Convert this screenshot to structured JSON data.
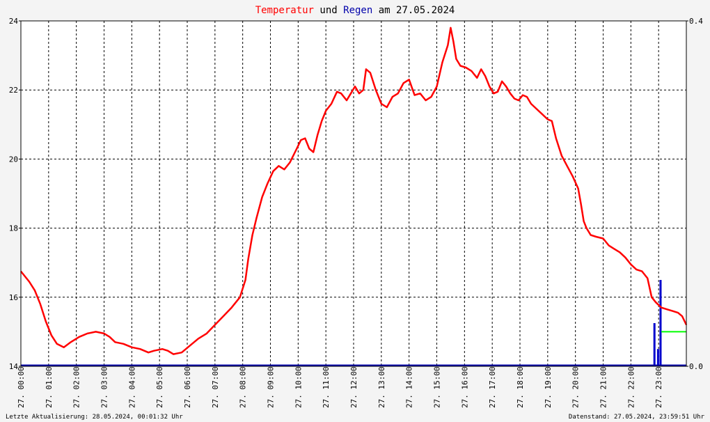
{
  "chart_data": {
    "type": "line",
    "title": {
      "part1": "Temperatur",
      "part2": " und ",
      "part3": "Regen",
      "part4": " am 27.05.2024"
    },
    "x_tick_labels": [
      "27. 00:00",
      "27. 01:00",
      "27. 02:00",
      "27. 03:00",
      "27. 04:00",
      "27. 05:00",
      "27. 06:00",
      "27. 07:00",
      "27. 08:00",
      "27. 09:00",
      "27. 10:00",
      "27. 11:00",
      "27. 12:00",
      "27. 13:00",
      "27. 14:00",
      "27. 15:00",
      "27. 16:00",
      "27. 17:00",
      "27. 18:00",
      "27. 19:00",
      "27. 20:00",
      "27. 21:00",
      "27. 22:00",
      "27. 23:00"
    ],
    "y_left_ticks": [
      "14",
      "16",
      "18",
      "20",
      "22",
      "24"
    ],
    "y_left_range": [
      14,
      24
    ],
    "y_right_ticks": [
      "0.0",
      "0.4"
    ],
    "y_right_range": [
      0,
      0.4
    ],
    "x_range_hours": [
      0,
      24
    ],
    "grid": true,
    "series": [
      {
        "color": "#ff0000",
        "axis": "left",
        "points": [
          [
            0.0,
            16.75
          ],
          [
            0.3,
            16.45
          ],
          [
            0.5,
            16.2
          ],
          [
            0.7,
            15.8
          ],
          [
            0.9,
            15.3
          ],
          [
            1.1,
            14.9
          ],
          [
            1.3,
            14.65
          ],
          [
            1.55,
            14.55
          ],
          [
            1.8,
            14.7
          ],
          [
            2.1,
            14.85
          ],
          [
            2.4,
            14.95
          ],
          [
            2.7,
            15.0
          ],
          [
            3.0,
            14.95
          ],
          [
            3.2,
            14.85
          ],
          [
            3.4,
            14.7
          ],
          [
            3.7,
            14.65
          ],
          [
            4.0,
            14.55
          ],
          [
            4.3,
            14.5
          ],
          [
            4.6,
            14.4
          ],
          [
            4.8,
            14.45
          ],
          [
            5.1,
            14.5
          ],
          [
            5.3,
            14.45
          ],
          [
            5.5,
            14.35
          ],
          [
            5.8,
            14.4
          ],
          [
            6.1,
            14.6
          ],
          [
            6.4,
            14.8
          ],
          [
            6.7,
            14.95
          ],
          [
            7.0,
            15.2
          ],
          [
            7.3,
            15.45
          ],
          [
            7.6,
            15.7
          ],
          [
            7.9,
            16.0
          ],
          [
            8.1,
            16.5
          ],
          [
            8.2,
            17.1
          ],
          [
            8.35,
            17.8
          ],
          [
            8.5,
            18.3
          ],
          [
            8.7,
            18.9
          ],
          [
            8.9,
            19.3
          ],
          [
            9.1,
            19.65
          ],
          [
            9.3,
            19.8
          ],
          [
            9.5,
            19.7
          ],
          [
            9.7,
            19.9
          ],
          [
            9.95,
            20.3
          ],
          [
            10.1,
            20.55
          ],
          [
            10.25,
            20.6
          ],
          [
            10.4,
            20.3
          ],
          [
            10.55,
            20.2
          ],
          [
            10.7,
            20.7
          ],
          [
            10.85,
            21.1
          ],
          [
            11.0,
            21.4
          ],
          [
            11.2,
            21.6
          ],
          [
            11.4,
            21.95
          ],
          [
            11.55,
            21.9
          ],
          [
            11.75,
            21.7
          ],
          [
            11.9,
            21.9
          ],
          [
            12.05,
            22.1
          ],
          [
            12.2,
            21.9
          ],
          [
            12.35,
            22.0
          ],
          [
            12.45,
            22.6
          ],
          [
            12.6,
            22.5
          ],
          [
            12.8,
            22.0
          ],
          [
            13.0,
            21.6
          ],
          [
            13.2,
            21.5
          ],
          [
            13.4,
            21.8
          ],
          [
            13.6,
            21.9
          ],
          [
            13.8,
            22.2
          ],
          [
            14.0,
            22.3
          ],
          [
            14.2,
            21.85
          ],
          [
            14.4,
            21.9
          ],
          [
            14.6,
            21.7
          ],
          [
            14.8,
            21.8
          ],
          [
            15.0,
            22.1
          ],
          [
            15.2,
            22.8
          ],
          [
            15.4,
            23.3
          ],
          [
            15.5,
            23.8
          ],
          [
            15.6,
            23.4
          ],
          [
            15.7,
            22.9
          ],
          [
            15.85,
            22.7
          ],
          [
            16.05,
            22.65
          ],
          [
            16.25,
            22.55
          ],
          [
            16.45,
            22.35
          ],
          [
            16.6,
            22.6
          ],
          [
            16.75,
            22.4
          ],
          [
            16.9,
            22.1
          ],
          [
            17.05,
            21.9
          ],
          [
            17.2,
            21.95
          ],
          [
            17.35,
            22.25
          ],
          [
            17.5,
            22.1
          ],
          [
            17.65,
            21.9
          ],
          [
            17.8,
            21.75
          ],
          [
            17.95,
            21.7
          ],
          [
            18.1,
            21.85
          ],
          [
            18.25,
            21.8
          ],
          [
            18.4,
            21.6
          ],
          [
            18.6,
            21.45
          ],
          [
            18.8,
            21.3
          ],
          [
            19.0,
            21.15
          ],
          [
            19.15,
            21.1
          ],
          [
            19.3,
            20.6
          ],
          [
            19.5,
            20.1
          ],
          [
            19.7,
            19.8
          ],
          [
            19.9,
            19.5
          ],
          [
            20.1,
            19.15
          ],
          [
            20.2,
            18.7
          ],
          [
            20.3,
            18.2
          ],
          [
            20.4,
            18.0
          ],
          [
            20.55,
            17.8
          ],
          [
            20.75,
            17.75
          ],
          [
            21.0,
            17.7
          ],
          [
            21.2,
            17.5
          ],
          [
            21.4,
            17.4
          ],
          [
            21.6,
            17.3
          ],
          [
            21.8,
            17.15
          ],
          [
            22.0,
            16.95
          ],
          [
            22.2,
            16.8
          ],
          [
            22.4,
            16.75
          ],
          [
            22.6,
            16.55
          ],
          [
            22.75,
            16.0
          ],
          [
            22.9,
            15.85
          ],
          [
            23.1,
            15.7
          ],
          [
            23.3,
            15.65
          ],
          [
            23.5,
            15.6
          ],
          [
            23.7,
            15.55
          ],
          [
            23.85,
            15.45
          ],
          [
            24.0,
            15.2
          ]
        ]
      },
      {
        "color": "#00ff00",
        "axis": "left",
        "points": [
          [
            23.1,
            15.0
          ],
          [
            24.0,
            15.0
          ]
        ]
      }
    ],
    "rain_bars": {
      "color": "#0000cc",
      "axis": "right",
      "values": [
        [
          22.85,
          0.05
        ],
        [
          22.98,
          0.02
        ],
        [
          23.07,
          0.1
        ]
      ]
    },
    "rain_baseline_color": "#0000aa"
  },
  "footer": {
    "left": "Letzte Aktualisierung: 28.05.2024, 00:01:32 Uhr",
    "right": "Datenstand: 27.05.2024, 23:59:51 Uhr"
  },
  "colors": {
    "temperature": "#ff0000",
    "rain": "#0000aa",
    "title_rest": "#000000",
    "background": "#f4f4f4",
    "plot_background": "#ffffff"
  }
}
